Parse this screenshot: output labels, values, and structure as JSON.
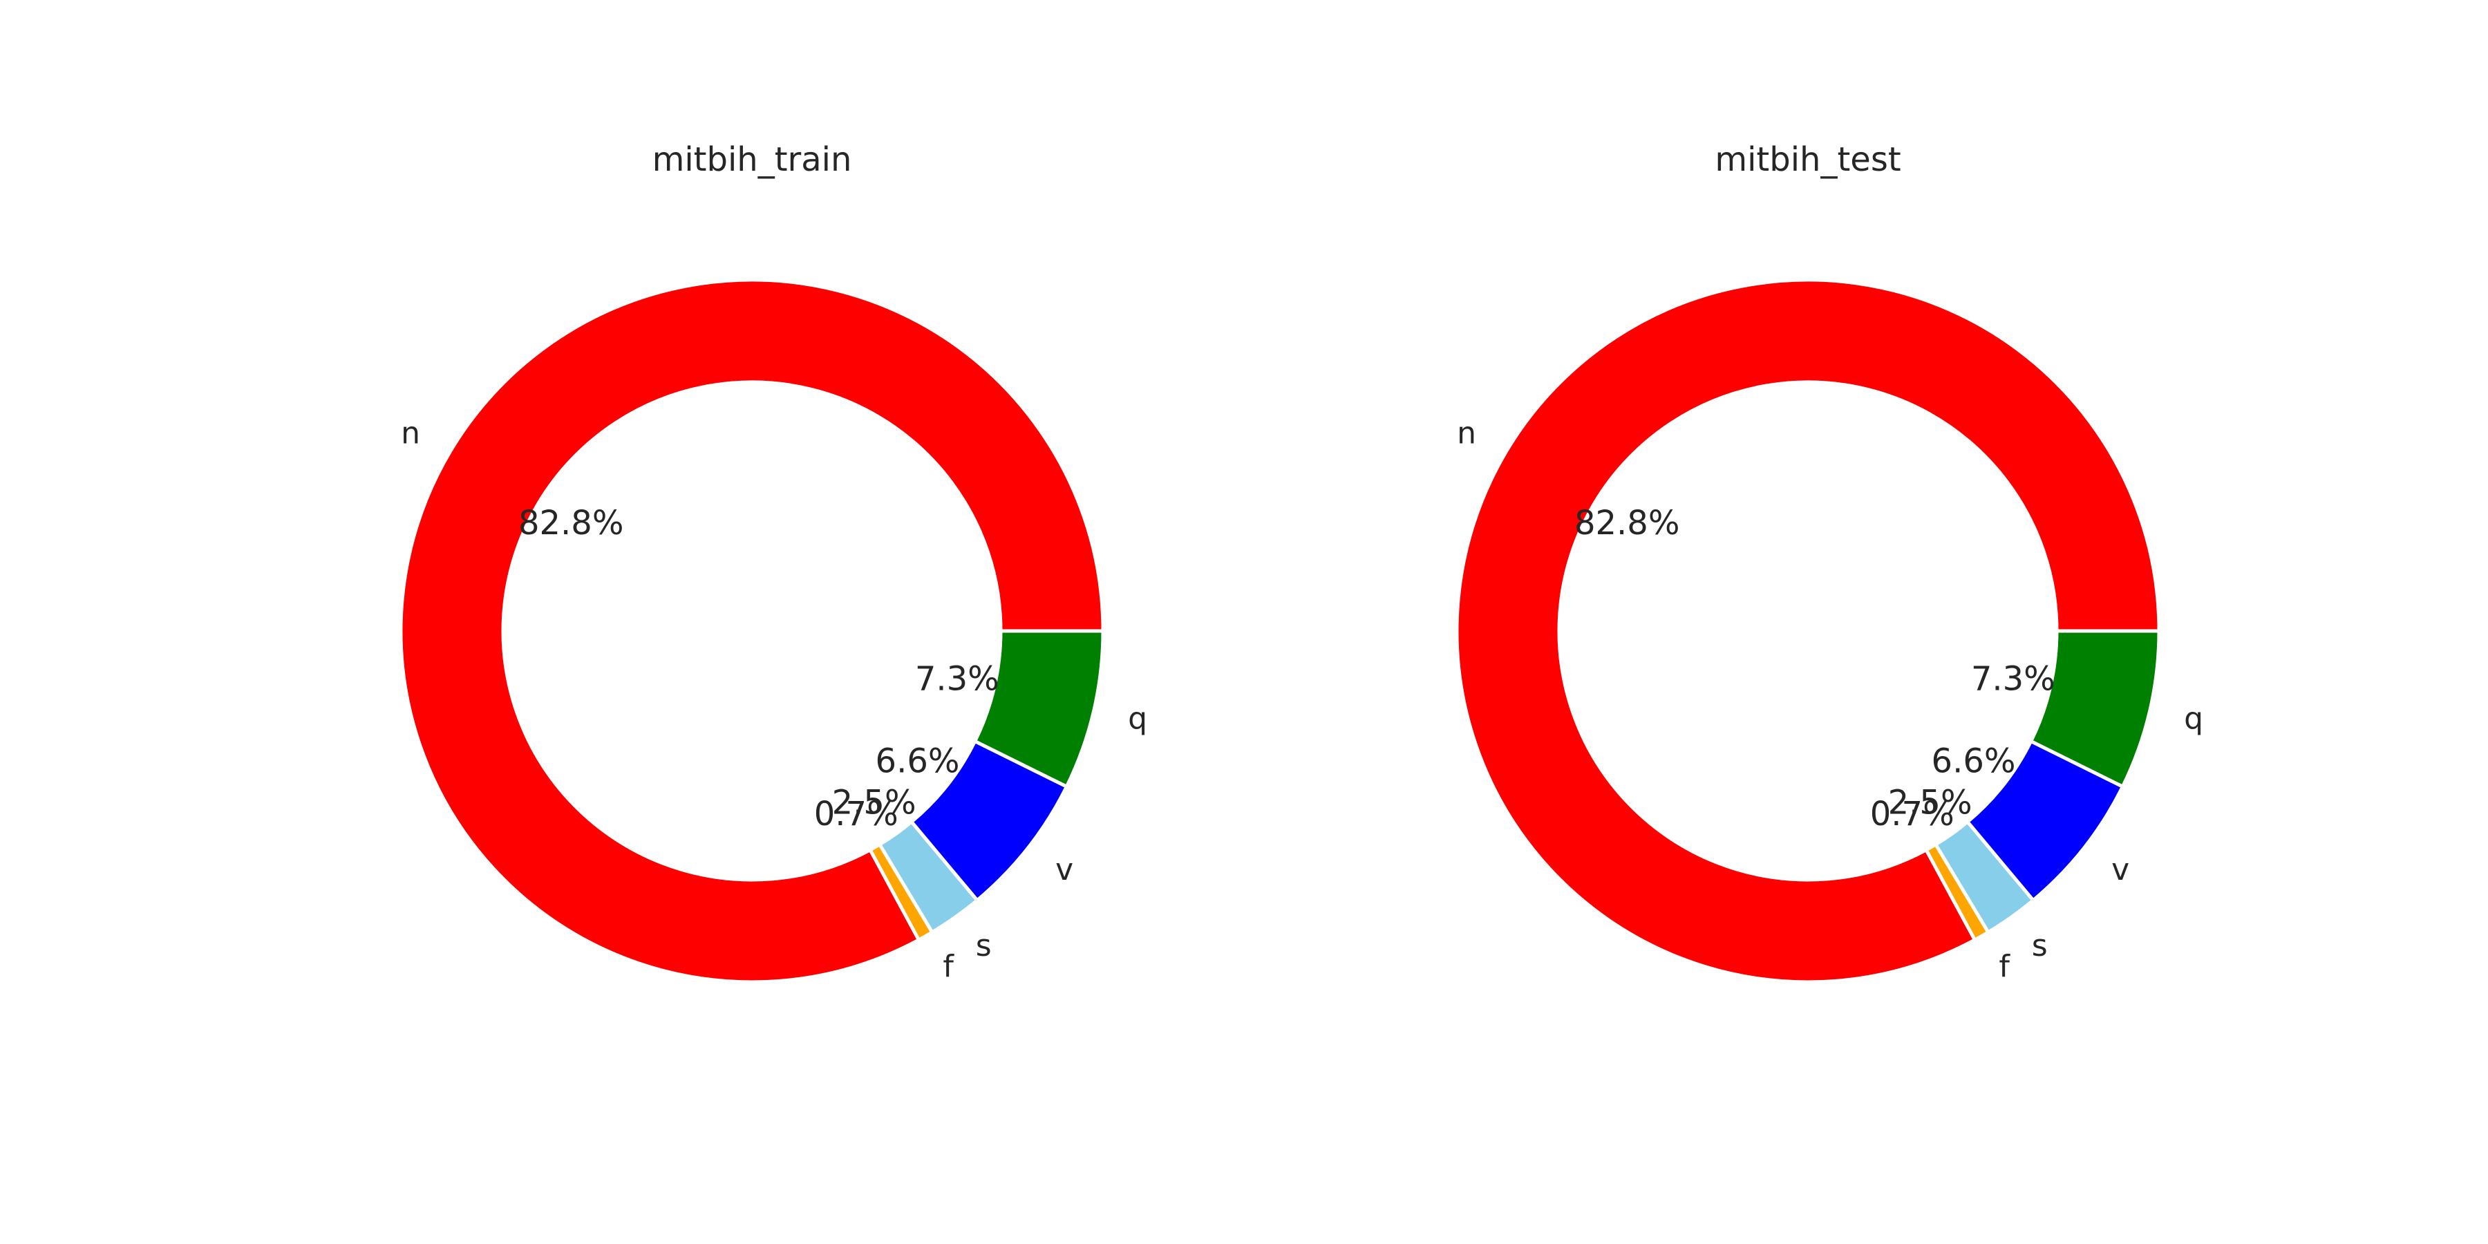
{
  "chart_data": [
    {
      "type": "pie",
      "title": "mitbih_train",
      "donut": true,
      "slices": [
        {
          "label": "n",
          "value": 82.8,
          "pct_text": "82.8%",
          "color": "#ff0000"
        },
        {
          "label": "f",
          "value": 0.7,
          "pct_text": "0.7%",
          "color": "#ffa500"
        },
        {
          "label": "s",
          "value": 2.5,
          "pct_text": "2.5%",
          "color": "#87ceeb"
        },
        {
          "label": "v",
          "value": 6.6,
          "pct_text": "6.6%",
          "color": "#0000ff"
        },
        {
          "label": "q",
          "value": 7.3,
          "pct_text": "7.3%",
          "color": "#008000"
        }
      ]
    },
    {
      "type": "pie",
      "title": "mitbih_test",
      "donut": true,
      "slices": [
        {
          "label": "n",
          "value": 82.8,
          "pct_text": "82.8%",
          "color": "#ff0000"
        },
        {
          "label": "f",
          "value": 0.7,
          "pct_text": "0.7%",
          "color": "#ffa500"
        },
        {
          "label": "s",
          "value": 2.5,
          "pct_text": "2.5%",
          "color": "#87ceeb"
        },
        {
          "label": "v",
          "value": 6.6,
          "pct_text": "6.6%",
          "color": "#0000ff"
        },
        {
          "label": "q",
          "value": 7.3,
          "pct_text": "7.3%",
          "color": "#008000"
        }
      ]
    }
  ]
}
